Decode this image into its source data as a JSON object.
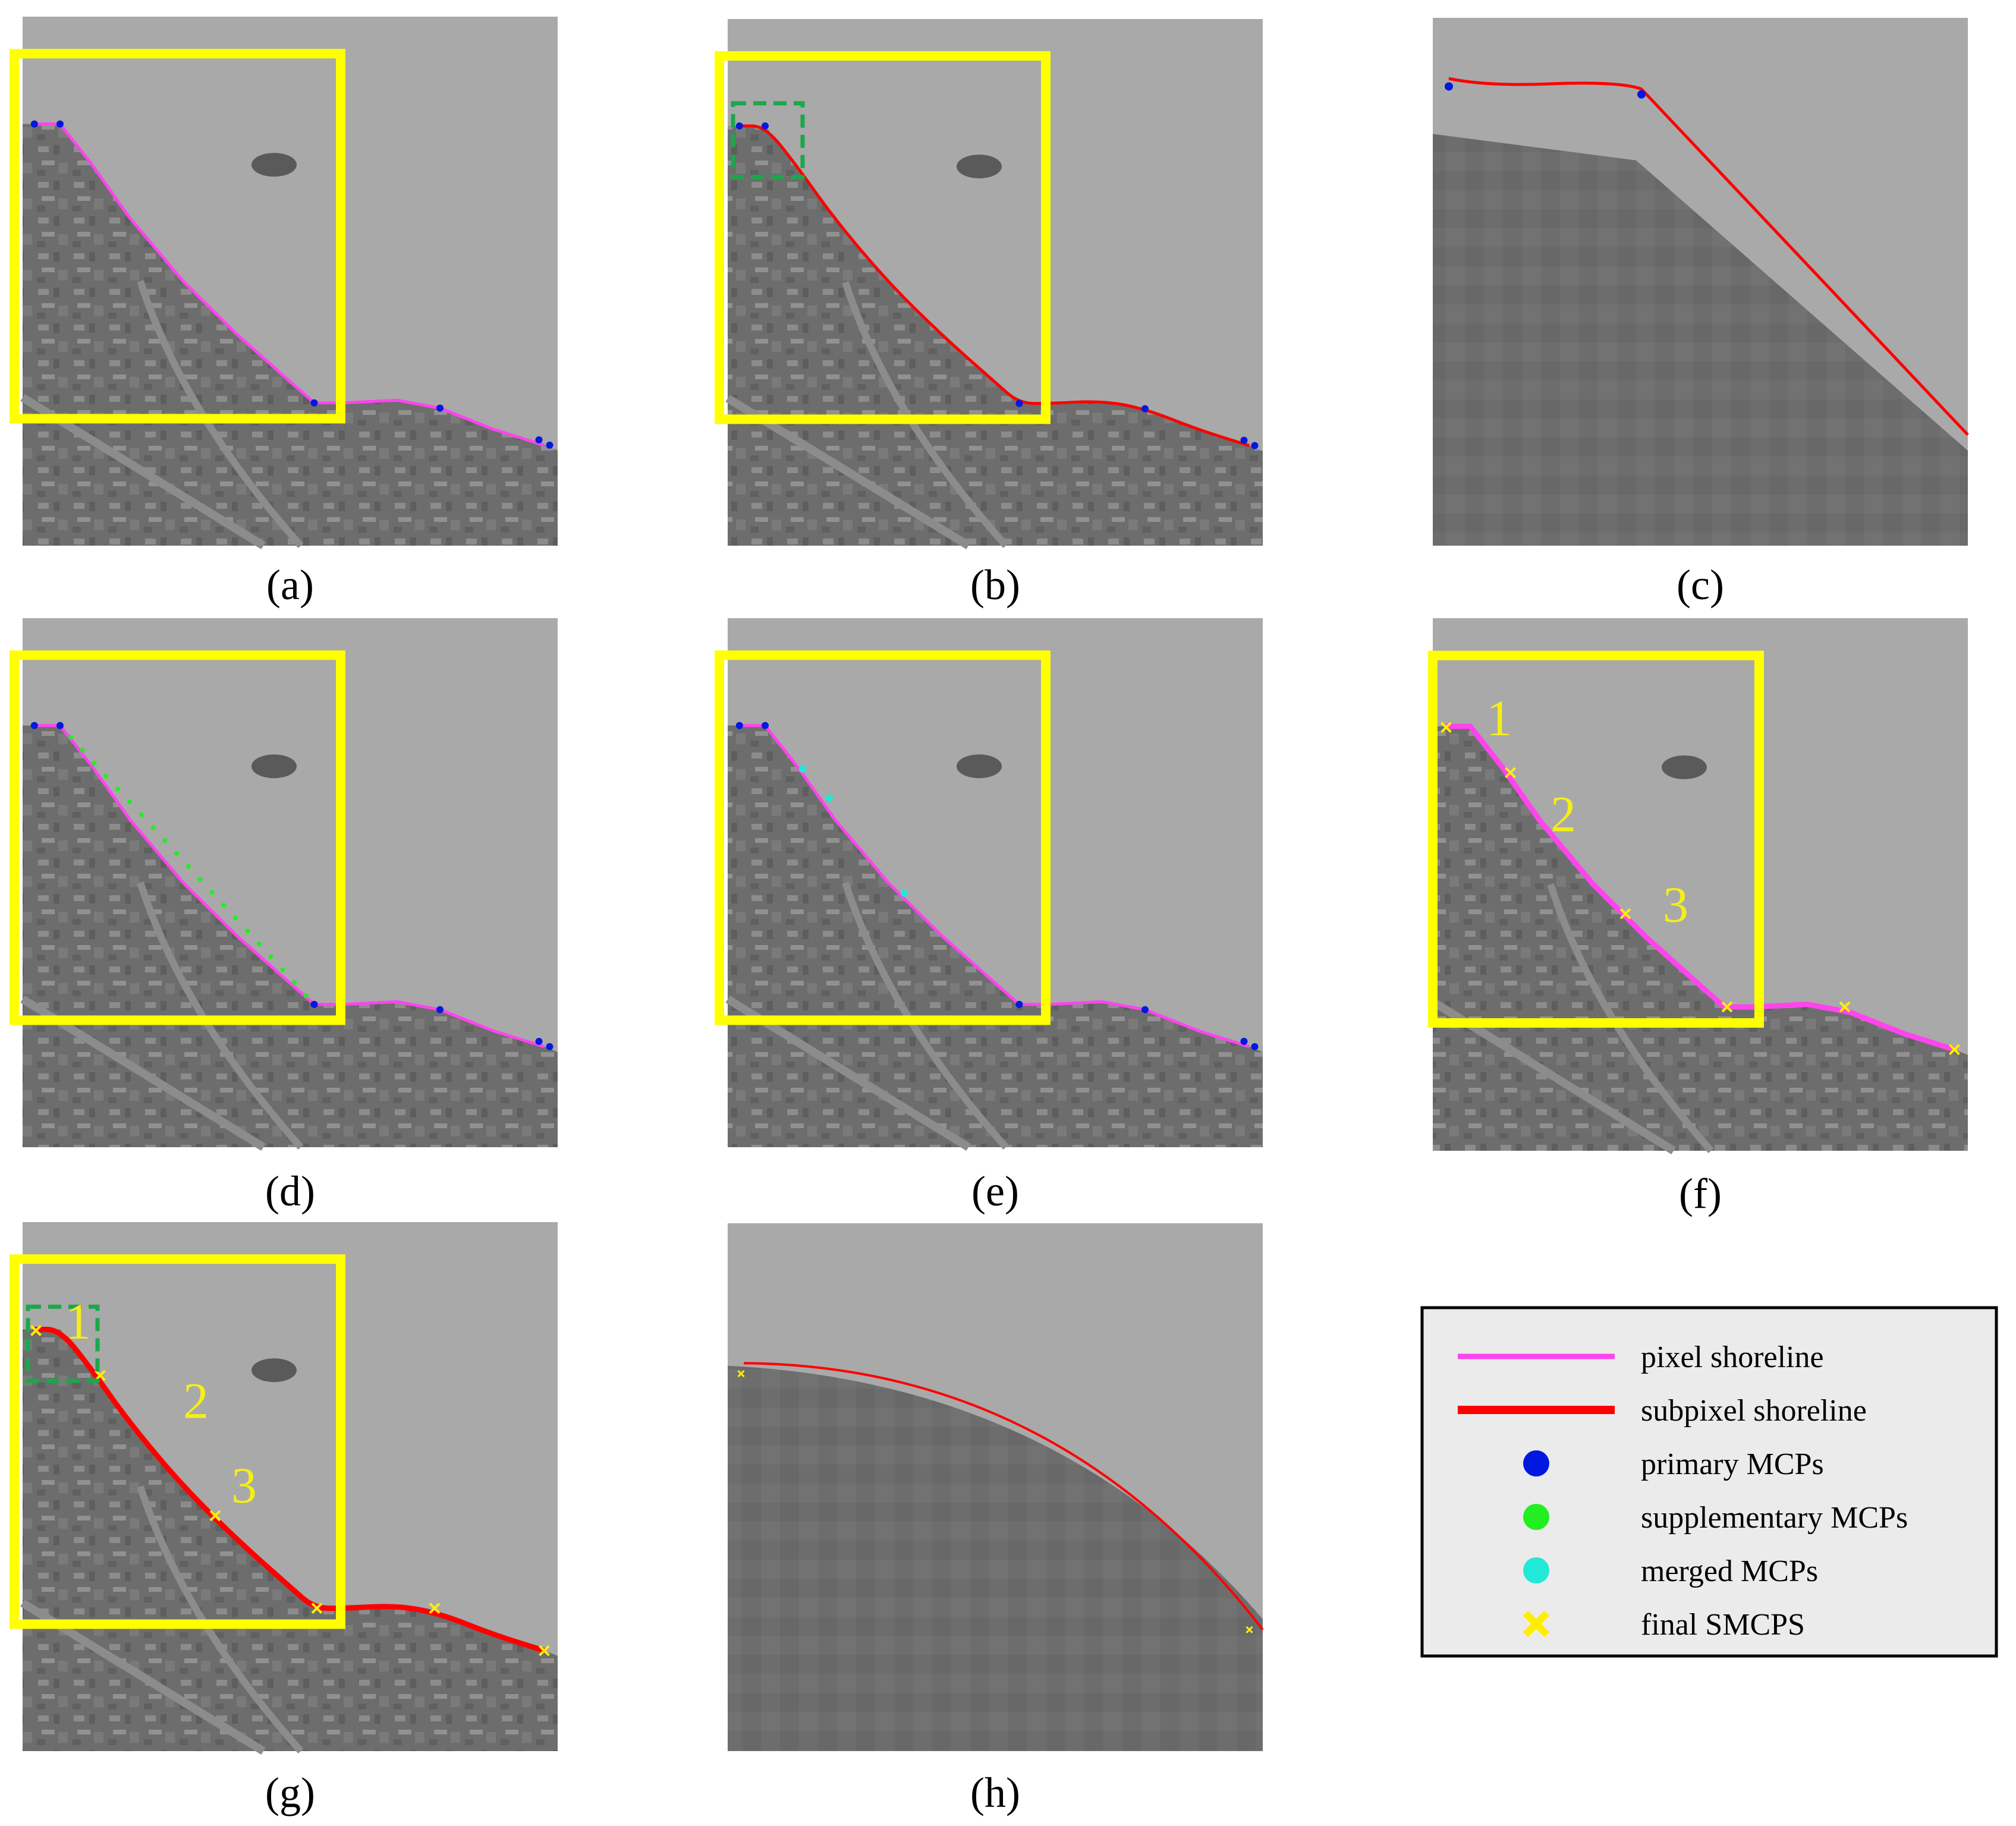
{
  "panels": [
    {
      "id": "a",
      "caption": "(a)",
      "shoreline": "pixel",
      "markers": "primary",
      "zoom": false,
      "segment_numbers": []
    },
    {
      "id": "b",
      "caption": "(b)",
      "shoreline": "subpixel",
      "markers": "primary",
      "zoom": false,
      "segment_numbers": []
    },
    {
      "id": "c",
      "caption": "(c)",
      "shoreline": "subpixel",
      "markers": "primary",
      "zoom": true,
      "segment_numbers": []
    },
    {
      "id": "d",
      "caption": "(d)",
      "shoreline": "pixel",
      "markers": "supplementary",
      "zoom": false,
      "segment_numbers": []
    },
    {
      "id": "e",
      "caption": "(e)",
      "shoreline": "pixel",
      "markers": "merged",
      "zoom": false,
      "segment_numbers": []
    },
    {
      "id": "f",
      "caption": "(f)",
      "shoreline": "pixel",
      "markers": "final",
      "zoom": false,
      "segment_numbers": [
        "1",
        "2",
        "3"
      ]
    },
    {
      "id": "g",
      "caption": "(g)",
      "shoreline": "subpixel",
      "markers": "final",
      "zoom": false,
      "segment_numbers": [
        "1",
        "2",
        "3"
      ]
    },
    {
      "id": "h",
      "caption": "(h)",
      "shoreline": "subpixel",
      "markers": "final",
      "zoom": true,
      "segment_numbers": []
    }
  ],
  "legend": {
    "items": [
      {
        "label": "pixel shoreline",
        "symbol": "line",
        "color": "#ff44ee"
      },
      {
        "label": "subpixel shoreline",
        "symbol": "line",
        "color": "#ff0000"
      },
      {
        "label": "primary MCPs",
        "symbol": "dot",
        "color": "#0018e0"
      },
      {
        "label": "supplementary MCPs",
        "symbol": "dot",
        "color": "#22ee22"
      },
      {
        "label": "merged MCPs",
        "symbol": "dot",
        "color": "#22e8d8"
      },
      {
        "label": "final SMCPS",
        "symbol": "cross",
        "color": "#ffee00"
      }
    ]
  },
  "colors": {
    "highlight_box": "#ffff00",
    "zoom_box": "#1aa84a",
    "water": "#a9a9a9",
    "land": "#6e6e6e"
  }
}
